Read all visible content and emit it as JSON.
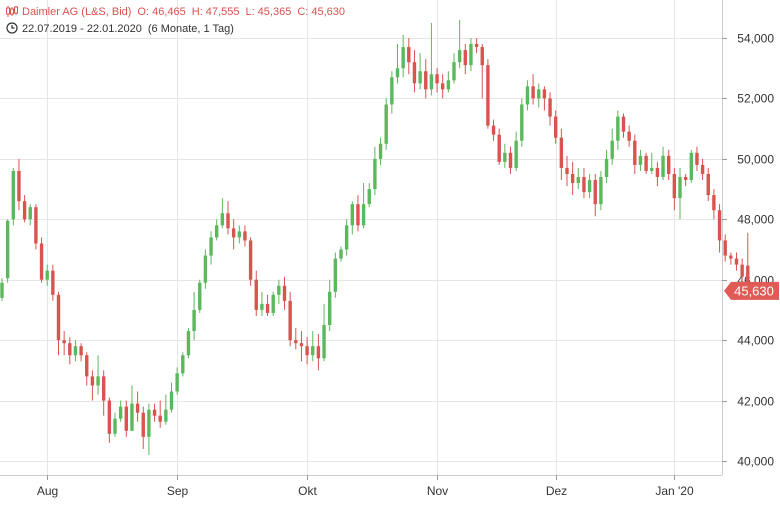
{
  "header": {
    "instrument": "Daimler AG (L&S, Bid)",
    "open": "O: 46,465",
    "high": "H: 47,555",
    "low": "L: 45,365",
    "close": "C: 45,630",
    "range": "22.07.2019 - 22.01.2020",
    "period": "(6 Monate, 1 Tag)"
  },
  "colors": {
    "up": "#5cb85c",
    "down": "#d9534f",
    "grid": "#e6e6e6",
    "axis_text": "#333333",
    "last_price_bg": "#e05a56"
  },
  "icons": {
    "chart_type": "candlestick-icon",
    "range": "clock-icon"
  },
  "chart_data": {
    "type": "candlestick",
    "title": "Daimler AG (L&S, Bid)",
    "xlabel": "",
    "ylabel": "",
    "ylim": [
      39500,
      54800
    ],
    "y_axis_position": "right",
    "grid": true,
    "y_ticks": [
      40000,
      42000,
      44000,
      46000,
      48000,
      50000,
      52000,
      54000
    ],
    "y_tick_labels": [
      "40,000",
      "42,000",
      "44,000",
      "46,000",
      "48,000",
      "50,000",
      "52,000",
      "54,000"
    ],
    "x_month_labels": [
      {
        "label": "Aug",
        "index": 8
      },
      {
        "label": "Sep",
        "index": 31
      },
      {
        "label": "Okt",
        "index": 54
      },
      {
        "label": "Nov",
        "index": 77
      },
      {
        "label": "Dez",
        "index": 98
      },
      {
        "label": "Jan '20",
        "index": 119
      }
    ],
    "last_price": 45630,
    "last_price_label": "45,630",
    "candles": [
      [
        45400,
        45900,
        45300,
        46050
      ],
      [
        46050,
        47950,
        45900,
        48000
      ],
      [
        48000,
        49600,
        47800,
        49700
      ],
      [
        49600,
        48600,
        48300,
        50000
      ],
      [
        48600,
        48000,
        47900,
        48800
      ],
      [
        48000,
        48400,
        47800,
        48500
      ],
      [
        48400,
        47200,
        47000,
        48500
      ],
      [
        47200,
        46000,
        45900,
        47400
      ],
      [
        46000,
        46300,
        45800,
        46500
      ],
      [
        46300,
        45500,
        45300,
        46500
      ],
      [
        45500,
        44000,
        43500,
        45600
      ],
      [
        44000,
        43900,
        43500,
        44300
      ],
      [
        43900,
        43500,
        43200,
        44100
      ],
      [
        43500,
        43800,
        43300,
        44000
      ],
      [
        43800,
        43500,
        43300,
        43900
      ],
      [
        43500,
        42800,
        42500,
        43600
      ],
      [
        42800,
        42500,
        42000,
        43000
      ],
      [
        42500,
        42800,
        42200,
        43500
      ],
      [
        42800,
        42000,
        41500,
        43000
      ],
      [
        42000,
        40900,
        40600,
        42100
      ],
      [
        40900,
        41400,
        40800,
        41600
      ],
      [
        41400,
        41800,
        41300,
        42000
      ],
      [
        41800,
        41000,
        40800,
        42000
      ],
      [
        41000,
        41900,
        41000,
        42500
      ],
      [
        41900,
        41600,
        41300,
        42300
      ],
      [
        41600,
        40800,
        40400,
        41800
      ],
      [
        40800,
        41700,
        40200,
        41900
      ],
      [
        41700,
        41500,
        41300,
        41900
      ],
      [
        41500,
        41300,
        41100,
        42000
      ],
      [
        41300,
        41700,
        41200,
        42200
      ],
      [
        41700,
        42300,
        41600,
        42600
      ],
      [
        42300,
        42900,
        42200,
        43100
      ],
      [
        42900,
        43500,
        42800,
        43600
      ],
      [
        43500,
        44300,
        43400,
        44400
      ],
      [
        44300,
        45000,
        44000,
        45600
      ],
      [
        45000,
        45900,
        44900,
        46000
      ],
      [
        45900,
        46800,
        45700,
        47000
      ],
      [
        46800,
        47400,
        46500,
        47600
      ],
      [
        47400,
        47800,
        47300,
        48000
      ],
      [
        47800,
        48200,
        47700,
        48700
      ],
      [
        48200,
        47700,
        47500,
        48600
      ],
      [
        47700,
        47400,
        47000,
        48000
      ],
      [
        47400,
        47600,
        47200,
        47800
      ],
      [
        47600,
        47300,
        47100,
        47800
      ],
      [
        47300,
        46000,
        45800,
        47400
      ],
      [
        46000,
        45000,
        44800,
        46300
      ],
      [
        45000,
        45200,
        44800,
        45600
      ],
      [
        45200,
        44900,
        44800,
        45500
      ],
      [
        44900,
        45500,
        44800,
        45600
      ],
      [
        45500,
        45800,
        45200,
        46000
      ],
      [
        45800,
        45300,
        45000,
        46100
      ],
      [
        45300,
        44000,
        43800,
        45600
      ],
      [
        44000,
        43900,
        43700,
        44400
      ],
      [
        43900,
        43800,
        43300,
        44300
      ],
      [
        43800,
        43500,
        43200,
        44100
      ],
      [
        43500,
        43800,
        43300,
        44300
      ],
      [
        43800,
        43400,
        43000,
        44200
      ],
      [
        43400,
        44500,
        43300,
        45200
      ],
      [
        44500,
        45600,
        44300,
        46000
      ],
      [
        45600,
        46700,
        45400,
        46900
      ],
      [
        46700,
        47000,
        46600,
        47100
      ],
      [
        47000,
        47800,
        46800,
        48000
      ],
      [
        47800,
        48500,
        47500,
        48600
      ],
      [
        48500,
        47800,
        47600,
        48800
      ],
      [
        47800,
        48500,
        47700,
        49200
      ],
      [
        48500,
        49000,
        48400,
        49200
      ],
      [
        49000,
        50000,
        48800,
        50400
      ],
      [
        50000,
        50500,
        49800,
        50700
      ],
      [
        50500,
        51800,
        50300,
        52000
      ],
      [
        51800,
        52700,
        51500,
        52900
      ],
      [
        52700,
        53000,
        52500,
        53800
      ],
      [
        53000,
        53700,
        52700,
        54100
      ],
      [
        53700,
        53200,
        52800,
        54000
      ],
      [
        53200,
        52500,
        52200,
        53600
      ],
      [
        52500,
        52900,
        52300,
        53500
      ],
      [
        52900,
        52300,
        52000,
        53300
      ],
      [
        52300,
        52800,
        52100,
        54500
      ],
      [
        52800,
        52500,
        52200,
        53000
      ],
      [
        52500,
        52300,
        52000,
        52800
      ],
      [
        52300,
        52600,
        52200,
        52900
      ],
      [
        52600,
        53200,
        52500,
        53500
      ],
      [
        53200,
        53600,
        53000,
        54600
      ],
      [
        53600,
        53100,
        52800,
        53800
      ],
      [
        53100,
        53800,
        52900,
        54000
      ],
      [
        53800,
        53700,
        53500,
        54000
      ],
      [
        53700,
        53100,
        52000,
        53800
      ],
      [
        53100,
        51100,
        51000,
        53300
      ],
      [
        51100,
        50800,
        50600,
        51300
      ],
      [
        50800,
        49900,
        49800,
        51000
      ],
      [
        49900,
        50200,
        49700,
        50500
      ],
      [
        50200,
        49700,
        49500,
        50400
      ],
      [
        49700,
        50600,
        49600,
        50900
      ],
      [
        50600,
        51800,
        50400,
        52000
      ],
      [
        51800,
        52400,
        51600,
        52600
      ],
      [
        52400,
        52000,
        51800,
        52800
      ],
      [
        52000,
        52300,
        51700,
        52500
      ],
      [
        52300,
        52000,
        51600,
        52400
      ],
      [
        52000,
        51400,
        51100,
        52200
      ],
      [
        51400,
        50700,
        50500,
        51600
      ],
      [
        50700,
        49700,
        49300,
        51000
      ],
      [
        49700,
        49500,
        49100,
        50100
      ],
      [
        49500,
        49200,
        48800,
        49900
      ],
      [
        49200,
        49400,
        49000,
        49700
      ],
      [
        49400,
        48900,
        48700,
        49700
      ],
      [
        48900,
        49300,
        48700,
        49500
      ],
      [
        49300,
        48500,
        48100,
        49500
      ],
      [
        48500,
        49400,
        48300,
        49600
      ],
      [
        49400,
        50000,
        49200,
        50300
      ],
      [
        50000,
        50600,
        49800,
        51000
      ],
      [
        50600,
        51400,
        50300,
        51600
      ],
      [
        51400,
        50900,
        50700,
        51500
      ],
      [
        50900,
        50600,
        50400,
        51100
      ],
      [
        50600,
        49800,
        49500,
        50800
      ],
      [
        49800,
        50100,
        49600,
        50300
      ],
      [
        50100,
        49600,
        49500,
        50200
      ],
      [
        49600,
        49700,
        49500,
        50200
      ],
      [
        49700,
        49400,
        49100,
        49900
      ],
      [
        49400,
        50100,
        49300,
        50400
      ],
      [
        50100,
        49500,
        49300,
        50300
      ],
      [
        49500,
        48700,
        48300,
        49700
      ],
      [
        48700,
        49400,
        48000,
        49700
      ],
      [
        49400,
        49300,
        49100,
        49500
      ],
      [
        49300,
        50200,
        49200,
        50300
      ],
      [
        50200,
        49800,
        49600,
        50400
      ],
      [
        49800,
        49500,
        49300,
        50000
      ],
      [
        49500,
        48800,
        48600,
        49700
      ],
      [
        48800,
        48300,
        48000,
        49000
      ],
      [
        48300,
        47300,
        46900,
        48500
      ],
      [
        47300,
        46800,
        46600,
        47500
      ],
      [
        46800,
        46700,
        46500,
        46900
      ],
      [
        46700,
        46500,
        46300,
        46900
      ],
      [
        46500,
        46100,
        45900,
        46700
      ],
      [
        46465,
        45630,
        45365,
        47555
      ]
    ]
  }
}
